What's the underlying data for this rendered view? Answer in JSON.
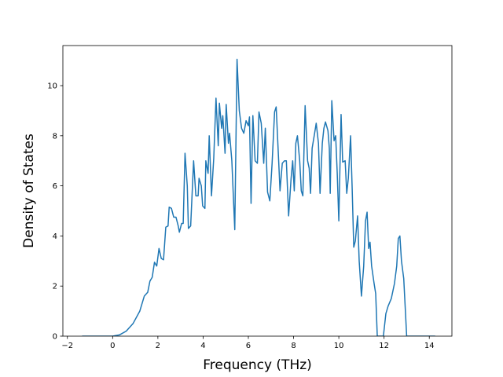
{
  "chart_data": {
    "type": "line",
    "x_label": "Frequency (THz)",
    "y_label": "Density of States",
    "xlim": [
      -2.2,
      15.0
    ],
    "ylim": [
      0,
      11.6
    ],
    "xticks": [
      {
        "value": -2,
        "label": "−2"
      },
      0,
      2,
      4,
      6,
      8,
      10,
      12,
      14
    ],
    "yticks": [
      0,
      2,
      4,
      6,
      8,
      10
    ],
    "grid": false,
    "series": [
      {
        "color": "#1f77b4",
        "x": [
          -1.35,
          0,
          0.3,
          0.6,
          0.9,
          1.2,
          1.4,
          1.55,
          1.65,
          1.75,
          1.85,
          1.95,
          2.05,
          2.15,
          2.25,
          2.35,
          2.45,
          2.5,
          2.6,
          2.7,
          2.8,
          2.9,
          2.95,
          3.05,
          3.12,
          3.2,
          3.3,
          3.35,
          3.45,
          3.58,
          3.68,
          3.78,
          3.82,
          3.92,
          3.98,
          4.08,
          4.12,
          4.22,
          4.27,
          4.37,
          4.47,
          4.57,
          4.67,
          4.72,
          4.82,
          4.87,
          4.97,
          5.02,
          5.12,
          5.17,
          5.27,
          5.4,
          5.5,
          5.6,
          5.7,
          5.8,
          5.9,
          6.0,
          6.05,
          6.12,
          6.2,
          6.3,
          6.4,
          6.47,
          6.57,
          6.68,
          6.75,
          6.85,
          6.95,
          7.05,
          7.16,
          7.23,
          7.34,
          7.4,
          7.5,
          7.6,
          7.68,
          7.78,
          7.89,
          7.96,
          8.03,
          8.1,
          8.17,
          8.27,
          8.34,
          8.41,
          8.51,
          8.62,
          8.69,
          8.75,
          8.82,
          8.93,
          9.0,
          9.1,
          9.17,
          9.27,
          9.34,
          9.41,
          9.52,
          9.58,
          9.62,
          9.69,
          9.79,
          9.86,
          9.93,
          10.0,
          10.1,
          10.17,
          10.28,
          10.35,
          10.42,
          10.52,
          10.59,
          10.66,
          10.73,
          10.83,
          10.9,
          11.0,
          11.1,
          11.18,
          11.25,
          11.32,
          11.38,
          11.45,
          11.56,
          11.63,
          11.7,
          11.97,
          12.08,
          12.18,
          12.32,
          12.46,
          12.56,
          12.63,
          12.7,
          12.77,
          12.87,
          13.0,
          14.26
        ],
        "values": [
          0,
          0,
          0.05,
          0.2,
          0.5,
          1.0,
          1.6,
          1.75,
          2.2,
          2.35,
          2.95,
          2.8,
          3.5,
          3.1,
          3.05,
          4.35,
          4.4,
          5.15,
          5.1,
          4.75,
          4.75,
          4.4,
          4.15,
          4.5,
          4.5,
          7.3,
          6.0,
          4.3,
          4.4,
          7.0,
          5.6,
          5.6,
          6.3,
          6.0,
          5.2,
          5.1,
          7.0,
          6.5,
          8.0,
          5.6,
          7.1,
          9.5,
          7.6,
          9.3,
          8.3,
          8.8,
          7.3,
          9.25,
          7.7,
          8.1,
          7.0,
          4.25,
          11.05,
          9.0,
          8.3,
          8.1,
          8.6,
          8.4,
          8.75,
          5.3,
          8.8,
          7.0,
          6.9,
          8.95,
          8.5,
          6.9,
          8.3,
          5.75,
          5.4,
          6.9,
          8.95,
          9.15,
          7.0,
          5.8,
          6.9,
          7.0,
          7.0,
          4.8,
          6.3,
          7.0,
          5.8,
          7.7,
          8.0,
          7.0,
          5.8,
          5.6,
          9.2,
          7.0,
          6.7,
          5.7,
          7.5,
          8.1,
          8.5,
          7.7,
          5.7,
          7.7,
          8.3,
          8.55,
          8.2,
          7.5,
          5.7,
          9.4,
          7.8,
          8.0,
          6.5,
          4.6,
          8.85,
          6.95,
          7.0,
          5.7,
          6.3,
          8.0,
          5.9,
          3.55,
          3.8,
          4.8,
          3.0,
          1.6,
          2.8,
          4.6,
          4.95,
          3.5,
          3.75,
          2.8,
          2.1,
          1.7,
          0,
          0,
          0.9,
          1.2,
          1.5,
          2.1,
          2.8,
          3.9,
          4.0,
          3.0,
          2.3,
          0,
          0
        ]
      }
    ]
  }
}
